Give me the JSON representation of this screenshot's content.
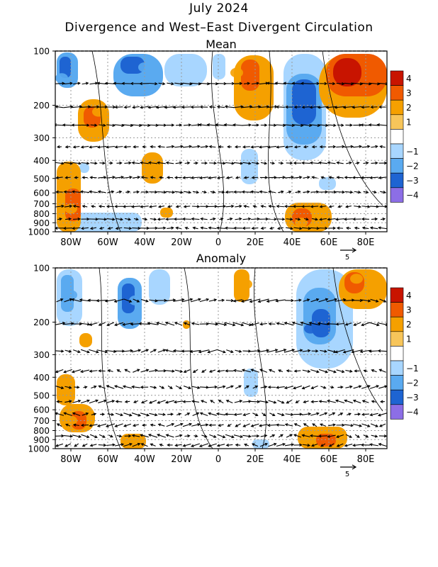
{
  "title": "July 2024",
  "subtitle": "Divergence and West–East Divergent Circulation",
  "colors": {
    "pos4": "#c81400",
    "pos3": "#f05a00",
    "pos2": "#f5a000",
    "pos1": "#f7c55a",
    "zero": "#ffffff",
    "neg1": "#a8d6ff",
    "neg2": "#5aaaf0",
    "neg3": "#1e64d2",
    "neg4": "#8c6ee6"
  },
  "colorbar": {
    "labels": [
      "4",
      "3",
      "2",
      "1",
      "−1",
      "−2",
      "−3",
      "−4"
    ]
  },
  "axes": {
    "y_ticks": [
      "100",
      "200",
      "300",
      "400",
      "500",
      "600",
      "700",
      "800",
      "900",
      "1000"
    ],
    "x_ticks": [
      "80W",
      "60W",
      "40W",
      "20W",
      "0",
      "20E",
      "40E",
      "60E",
      "80E"
    ],
    "ref_vector": "5"
  },
  "chart_data": [
    {
      "type": "heatmap",
      "title": "Mean",
      "x": [
        "80W",
        "60W",
        "40W",
        "20W",
        "0",
        "20E",
        "40E",
        "60E",
        "80E"
      ],
      "y_levels_hPa": [
        100,
        200,
        300,
        400,
        500,
        600,
        700,
        800,
        900,
        1000
      ],
      "clevs": [
        -4,
        -3,
        -2,
        -1,
        1,
        2,
        3,
        4
      ],
      "features": [
        {
          "lon": "85W",
          "plev": 150,
          "value": -2
        },
        {
          "lon": "65W",
          "plev": 220,
          "value": 2
        },
        {
          "lon": "40W",
          "plev": 130,
          "value": -2
        },
        {
          "lon": "10E",
          "plev": 140,
          "value": 2
        },
        {
          "lon": "45E",
          "plev": 220,
          "value": -3
        },
        {
          "lon": "70E",
          "plev": 140,
          "value": 4
        },
        {
          "lon": "80W",
          "plev": 750,
          "value": 2
        },
        {
          "lon": "45E",
          "plev": 900,
          "value": 2
        }
      ]
    },
    {
      "type": "heatmap",
      "title": "Anomaly",
      "x": [
        "80W",
        "60W",
        "40W",
        "20W",
        "0",
        "20E",
        "40E",
        "60E",
        "80E"
      ],
      "y_levels_hPa": [
        100,
        200,
        300,
        400,
        500,
        600,
        700,
        800,
        900,
        1000
      ],
      "clevs": [
        -4,
        -3,
        -2,
        -1,
        1,
        2,
        3,
        4
      ],
      "features": [
        {
          "lon": "80W",
          "plev": 150,
          "value": -2
        },
        {
          "lon": "45W",
          "plev": 160,
          "value": -2
        },
        {
          "lon": "15E",
          "plev": 130,
          "value": 2
        },
        {
          "lon": "50E",
          "plev": 220,
          "value": -3
        },
        {
          "lon": "75E",
          "plev": 120,
          "value": 2
        },
        {
          "lon": "80W",
          "plev": 700,
          "value": 2
        },
        {
          "lon": "50E",
          "plev": 950,
          "value": 2
        }
      ]
    }
  ]
}
